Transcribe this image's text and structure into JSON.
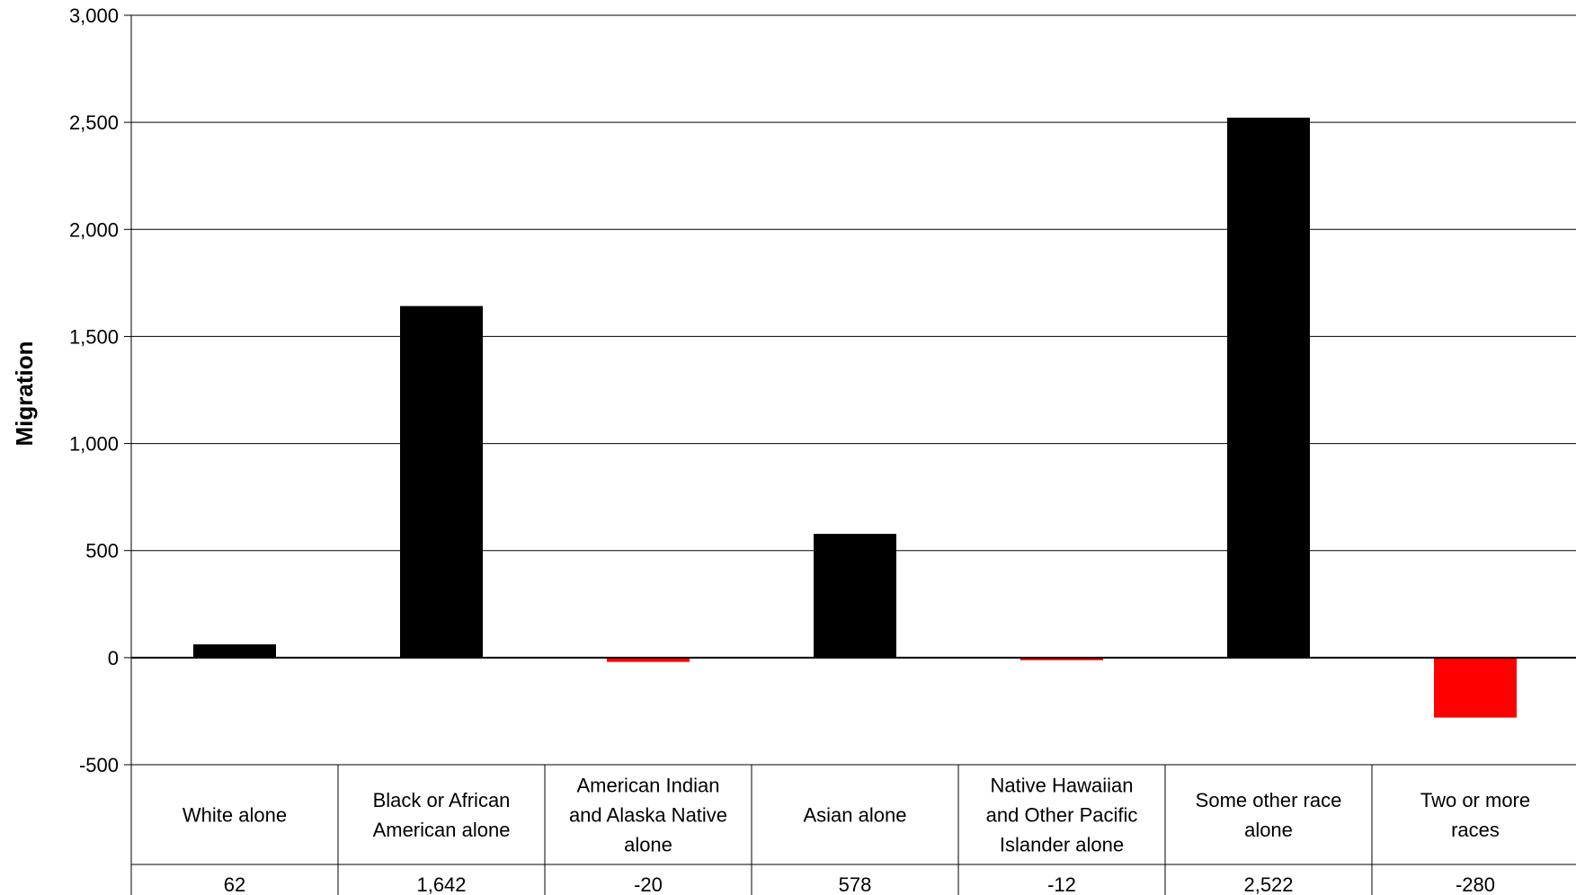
{
  "chart_data": {
    "type": "bar",
    "title": "",
    "xlabel": "",
    "ylabel": "Migration",
    "ylim": [
      -500,
      3000
    ],
    "yticks": [
      3000,
      2500,
      2000,
      1500,
      1000,
      500,
      0,
      -500
    ],
    "ytick_labels": [
      "3,000",
      "2,500",
      "2,000",
      "1,500",
      "1,000",
      "500",
      "0",
      "-500"
    ],
    "grid": true,
    "legend": "none",
    "categories": [
      [
        "White alone"
      ],
      [
        "Black or African",
        "American alone"
      ],
      [
        "American Indian",
        "and Alaska Native",
        "alone"
      ],
      [
        "Asian alone"
      ],
      [
        "Native Hawaiian",
        "and Other Pacific",
        "Islander alone"
      ],
      [
        "Some other race",
        "alone"
      ],
      [
        "Two or more",
        "races"
      ]
    ],
    "values": [
      62,
      1642,
      -20,
      578,
      -12,
      2522,
      -280
    ],
    "value_labels": [
      "62",
      "1,642",
      "-20",
      "578",
      "-12",
      "2,522",
      "-280"
    ],
    "colors": {
      "positive": "#000000",
      "negative": "#ff0000"
    }
  }
}
